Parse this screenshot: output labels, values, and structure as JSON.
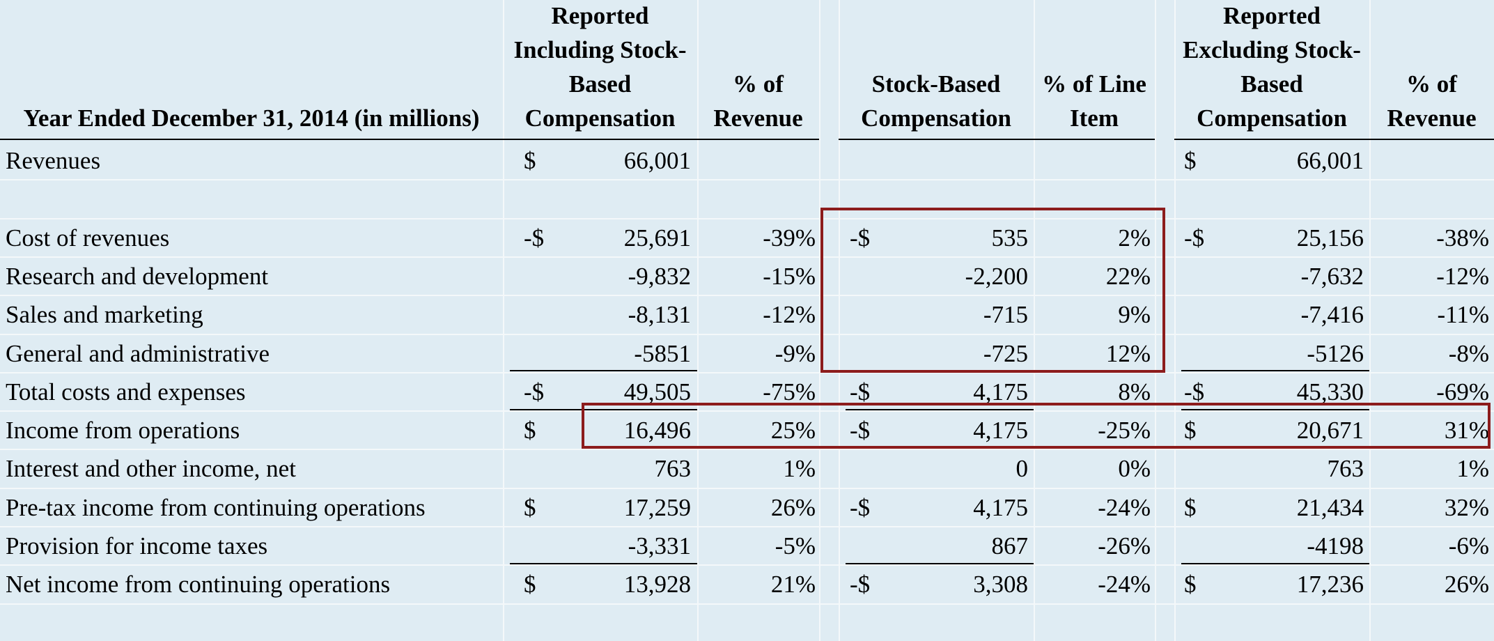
{
  "table": {
    "headers": {
      "row_label": "Year Ended December 31, 2014 (in millions)",
      "col1": "Reported Including Stock-Based Compensation",
      "col2": "% of Revenue",
      "col3": "Stock-Based Compensation",
      "col4": "% of Line Item",
      "col5": "Reported Excluding Stock-Based Compensation",
      "col6": "% of Revenue"
    },
    "rows": [
      {
        "label": "Revenues",
        "c1_sym": "$",
        "c1": "66,001",
        "c2": "",
        "c3_sym": "",
        "c3": "",
        "c4": "",
        "c5_sym": "$",
        "c5": "66,001",
        "c6": ""
      },
      {
        "label": "",
        "c1_sym": "",
        "c1": "",
        "c2": "",
        "c3_sym": "",
        "c3": "",
        "c4": "",
        "c5_sym": "",
        "c5": "",
        "c6": ""
      },
      {
        "label": "Cost of revenues",
        "c1_sym": "-$",
        "c1": "25,691",
        "c2": "-39%",
        "c3_sym": "-$",
        "c3": "535",
        "c4": "2%",
        "c5_sym": "-$",
        "c5": "25,156",
        "c6": "-38%"
      },
      {
        "label": "Research and development",
        "c1_sym": "",
        "c1": "-9,832",
        "c2": "-15%",
        "c3_sym": "",
        "c3": "-2,200",
        "c4": "22%",
        "c5_sym": "",
        "c5": "-7,632",
        "c6": "-12%"
      },
      {
        "label": "Sales and marketing",
        "c1_sym": "",
        "c1": "-8,131",
        "c2": "-12%",
        "c3_sym": "",
        "c3": "-715",
        "c4": "9%",
        "c5_sym": "",
        "c5": "-7,416",
        "c6": "-11%"
      },
      {
        "label": "General and administrative",
        "c1_sym": "",
        "c1": "-5851",
        "c2": "-9%",
        "c3_sym": "",
        "c3": "-725",
        "c4": "12%",
        "c5_sym": "",
        "c5": "-5126",
        "c6": "-8%"
      },
      {
        "label": "Total costs and expenses",
        "c1_sym": "-$",
        "c1": "49,505",
        "c2": "-75%",
        "c3_sym": "-$",
        "c3": "4,175",
        "c4": "8%",
        "c5_sym": "-$",
        "c5": "45,330",
        "c6": "-69%"
      },
      {
        "label": "Income from operations",
        "c1_sym": "$",
        "c1": "16,496",
        "c2": "25%",
        "c3_sym": "-$",
        "c3": "4,175",
        "c4": "-25%",
        "c5_sym": "$",
        "c5": "20,671",
        "c6": "31%"
      },
      {
        "label": "Interest and other income, net",
        "c1_sym": "",
        "c1": "763",
        "c2": "1%",
        "c3_sym": "",
        "c3": "0",
        "c4": "0%",
        "c5_sym": "",
        "c5": "763",
        "c6": "1%"
      },
      {
        "label": "Pre-tax income from continuing operations",
        "c1_sym": "$",
        "c1": "17,259",
        "c2": "26%",
        "c3_sym": "-$",
        "c3": "4,175",
        "c4": "-24%",
        "c5_sym": "$",
        "c5": "21,434",
        "c6": "32%"
      },
      {
        "label": "Provision for income taxes",
        "c1_sym": "",
        "c1": "-3,331",
        "c2": "-5%",
        "c3_sym": "",
        "c3": "867",
        "c4": "-26%",
        "c5_sym": "",
        "c5": "-4198",
        "c6": "-6%"
      },
      {
        "label": "Net income from continuing operations",
        "c1_sym": "$",
        "c1": "13,928",
        "c2": "21%",
        "c3_sym": "-$",
        "c3": "3,308",
        "c4": "-24%",
        "c5_sym": "$",
        "c5": "17,236",
        "c6": "26%"
      }
    ]
  },
  "colors": {
    "background": "#dfecf3",
    "gridline": "#f4f8fa",
    "highlight_box": "#8c1c1c"
  }
}
